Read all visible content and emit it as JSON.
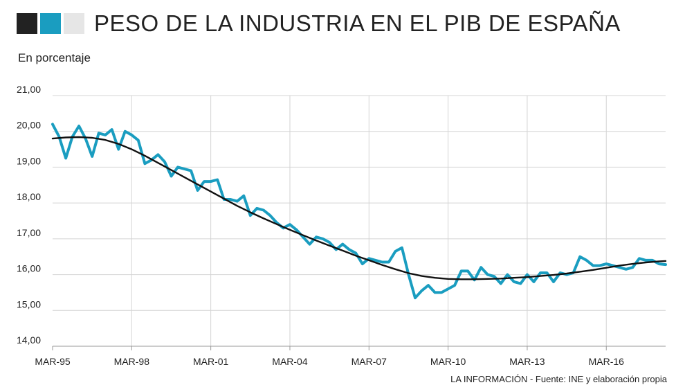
{
  "header": {
    "title": "PESO DE LA INDUSTRIA EN EL PIB DE ESPAÑA",
    "squares": [
      {
        "name": "black-square",
        "color": "#222222"
      },
      {
        "name": "teal-square",
        "color": "#1a9dc0"
      },
      {
        "name": "grey-square",
        "color": "#e6e6e6"
      }
    ]
  },
  "subtitle": "En porcentaje",
  "source": "LA INFORMACIÓN - Fuente: INE y elaboración propia",
  "colors": {
    "series": "#1a9dc0",
    "trend": "#111111",
    "grid": "#d4d4d4",
    "axis": "#999999"
  },
  "chart_data": {
    "type": "line",
    "ylim": [
      14,
      21
    ],
    "xlim": [
      1995.0,
      2018.25
    ],
    "y_ticks": [
      {
        "value": 21,
        "label": "21,00"
      },
      {
        "value": 20,
        "label": "20,00"
      },
      {
        "value": 19,
        "label": "19,00"
      },
      {
        "value": 18,
        "label": "18,00"
      },
      {
        "value": 17,
        "label": "17,00"
      },
      {
        "value": 16,
        "label": "16,00"
      },
      {
        "value": 15,
        "label": "15,00"
      },
      {
        "value": 14,
        "label": "14,00"
      }
    ],
    "x_ticks": [
      {
        "value": 1995.0,
        "label": "MAR-95"
      },
      {
        "value": 1998.0,
        "label": "MAR-98"
      },
      {
        "value": 2001.0,
        "label": "MAR-01"
      },
      {
        "value": 2004.0,
        "label": "MAR-04"
      },
      {
        "value": 2007.0,
        "label": "MAR-07"
      },
      {
        "value": 2010.0,
        "label": "MAR-10"
      },
      {
        "value": 2013.0,
        "label": "MAR-13"
      },
      {
        "value": 2016.0,
        "label": "MAR-16"
      }
    ],
    "grid": true,
    "series": [
      {
        "color": "#1a9dc0",
        "x": [
          1995.0,
          1995.25,
          1995.5,
          1995.75,
          1996.0,
          1996.25,
          1996.5,
          1996.75,
          1997.0,
          1997.25,
          1997.5,
          1997.75,
          1998.0,
          1998.25,
          1998.5,
          1998.75,
          1999.0,
          1999.25,
          1999.5,
          1999.75,
          2000.0,
          2000.25,
          2000.5,
          2000.75,
          2001.0,
          2001.25,
          2001.5,
          2001.75,
          2002.0,
          2002.25,
          2002.5,
          2002.75,
          2003.0,
          2003.25,
          2003.5,
          2003.75,
          2004.0,
          2004.25,
          2004.5,
          2004.75,
          2005.0,
          2005.25,
          2005.5,
          2005.75,
          2006.0,
          2006.25,
          2006.5,
          2006.75,
          2007.0,
          2007.25,
          2007.5,
          2007.75,
          2008.0,
          2008.25,
          2008.5,
          2008.75,
          2009.0,
          2009.25,
          2009.5,
          2009.75,
          2010.0,
          2010.25,
          2010.5,
          2010.75,
          2011.0,
          2011.25,
          2011.5,
          2011.75,
          2012.0,
          2012.25,
          2012.5,
          2012.75,
          2013.0,
          2013.25,
          2013.5,
          2013.75,
          2014.0,
          2014.25,
          2014.5,
          2014.75,
          2015.0,
          2015.25,
          2015.5,
          2015.75,
          2016.0,
          2016.25,
          2016.5,
          2016.75,
          2017.0,
          2017.25,
          2017.5,
          2017.75,
          2018.0,
          2018.25
        ],
        "values": [
          20.2,
          19.85,
          19.25,
          19.85,
          20.15,
          19.8,
          19.3,
          19.95,
          19.9,
          20.05,
          19.5,
          20.0,
          19.9,
          19.75,
          19.1,
          19.2,
          19.35,
          19.15,
          18.75,
          19.0,
          18.95,
          18.9,
          18.35,
          18.6,
          18.6,
          18.65,
          18.1,
          18.1,
          18.05,
          18.2,
          17.65,
          17.85,
          17.8,
          17.65,
          17.45,
          17.3,
          17.4,
          17.25,
          17.05,
          16.85,
          17.05,
          17.0,
          16.9,
          16.7,
          16.85,
          16.7,
          16.6,
          16.3,
          16.45,
          16.4,
          16.35,
          16.35,
          16.65,
          16.75,
          16.0,
          15.35,
          15.55,
          15.7,
          15.5,
          15.5,
          15.6,
          15.7,
          16.1,
          16.1,
          15.85,
          16.2,
          16.0,
          15.95,
          15.75,
          16.0,
          15.8,
          15.75,
          16.0,
          15.8,
          16.05,
          16.05,
          15.8,
          16.05,
          16.0,
          16.05,
          16.5,
          16.4,
          16.25,
          16.25,
          16.3,
          16.25,
          16.2,
          16.15,
          16.2,
          16.45,
          16.4,
          16.4,
          16.3,
          16.28
        ]
      },
      {
        "color": "#111111",
        "x": [
          1995.0,
          1995.5,
          1996.0,
          1996.5,
          1997.0,
          1997.5,
          1998.0,
          1998.5,
          1999.0,
          1999.5,
          2000.0,
          2000.5,
          2001.0,
          2001.5,
          2002.0,
          2002.5,
          2003.0,
          2003.5,
          2004.0,
          2004.5,
          2005.0,
          2005.5,
          2006.0,
          2006.5,
          2007.0,
          2007.5,
          2008.0,
          2008.5,
          2009.0,
          2009.5,
          2010.0,
          2010.5,
          2011.0,
          2011.5,
          2012.0,
          2012.5,
          2013.0,
          2013.5,
          2014.0,
          2014.5,
          2015.0,
          2015.5,
          2016.0,
          2016.5,
          2017.0,
          2017.5,
          2018.0,
          2018.25
        ],
        "values": [
          19.8,
          19.83,
          19.84,
          19.82,
          19.76,
          19.65,
          19.5,
          19.32,
          19.12,
          18.92,
          18.72,
          18.52,
          18.32,
          18.12,
          17.92,
          17.74,
          17.57,
          17.41,
          17.25,
          17.1,
          16.95,
          16.81,
          16.67,
          16.53,
          16.4,
          16.27,
          16.15,
          16.04,
          15.96,
          15.91,
          15.88,
          15.87,
          15.87,
          15.88,
          15.89,
          15.91,
          15.93,
          15.96,
          15.99,
          16.03,
          16.08,
          16.13,
          16.19,
          16.25,
          16.3,
          16.34,
          16.37,
          16.38
        ]
      }
    ]
  }
}
